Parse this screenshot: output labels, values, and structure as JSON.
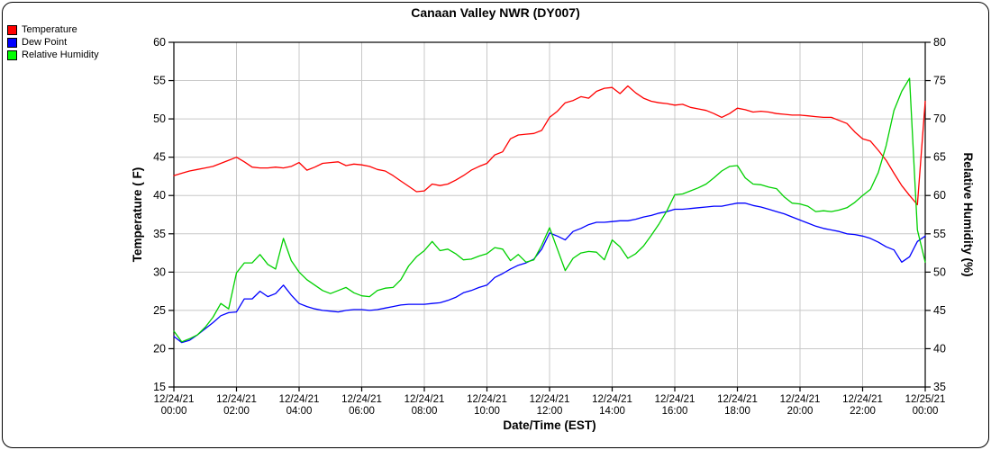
{
  "title": "Canaan Valley NWR (DY007)",
  "chart_data": {
    "type": "line",
    "title": "Canaan Valley NWR (DY007)",
    "grid": true,
    "legend_position": "top-left",
    "x_axis": {
      "label": "Date/Time (EST)",
      "unit": "hours",
      "start": 0,
      "step": 0.25,
      "range": [
        0,
        24
      ],
      "ticks": [
        {
          "date": "12/24/21",
          "time": "00:00"
        },
        {
          "date": "12/24/21",
          "time": "02:00"
        },
        {
          "date": "12/24/21",
          "time": "04:00"
        },
        {
          "date": "12/24/21",
          "time": "06:00"
        },
        {
          "date": "12/24/21",
          "time": "08:00"
        },
        {
          "date": "12/24/21",
          "time": "10:00"
        },
        {
          "date": "12/24/21",
          "time": "12:00"
        },
        {
          "date": "12/24/21",
          "time": "14:00"
        },
        {
          "date": "12/24/21",
          "time": "16:00"
        },
        {
          "date": "12/24/21",
          "time": "18:00"
        },
        {
          "date": "12/24/21",
          "time": "20:00"
        },
        {
          "date": "12/24/21",
          "time": "22:00"
        },
        {
          "date": "12/25/21",
          "time": "00:00"
        }
      ]
    },
    "y_left": {
      "label": "Temperature ( F)",
      "min": 15,
      "max": 60,
      "tick_step": 5,
      "ticks": [
        60,
        55,
        50,
        45,
        40,
        35,
        30,
        25,
        20,
        15
      ]
    },
    "y_right": {
      "label": "Relative Humidity (%)",
      "min": 35,
      "max": 80,
      "tick_step": 5,
      "ticks": [
        80,
        75,
        70,
        65,
        60,
        55,
        50,
        45,
        40,
        35
      ]
    },
    "series": [
      {
        "name": "Temperature",
        "axis": "left",
        "color": "#ff0000",
        "swatch": "#ff0000",
        "values": [
          42.6,
          42.9,
          43.2,
          43.4,
          43.6,
          43.8,
          44.2,
          44.6,
          45.0,
          44.4,
          43.7,
          43.6,
          43.6,
          43.7,
          43.6,
          43.8,
          44.3,
          43.3,
          43.7,
          44.2,
          44.3,
          44.4,
          43.9,
          44.1,
          44.0,
          43.8,
          43.4,
          43.2,
          42.6,
          41.9,
          41.2,
          40.5,
          40.6,
          41.5,
          41.3,
          41.5,
          42.0,
          42.6,
          43.3,
          43.8,
          44.2,
          45.3,
          45.7,
          47.4,
          47.9,
          48.0,
          48.1,
          48.5,
          50.2,
          51.0,
          52.1,
          52.4,
          52.9,
          52.7,
          53.6,
          54.0,
          54.1,
          53.3,
          54.3,
          53.4,
          52.7,
          52.3,
          52.1,
          52.0,
          51.8,
          51.9,
          51.5,
          51.3,
          51.1,
          50.7,
          50.2,
          50.7,
          51.4,
          51.2,
          50.9,
          51.0,
          50.9,
          50.7,
          50.6,
          50.5,
          50.5,
          50.4,
          50.3,
          50.2,
          50.2,
          49.8,
          49.4,
          48.3,
          47.4,
          47.1,
          45.9,
          44.6,
          42.9,
          41.3,
          40.0,
          38.8,
          52.3
        ]
      },
      {
        "name": "Dew Point",
        "axis": "left",
        "color": "#0000ff",
        "swatch": "#0000ff",
        "values": [
          21.6,
          20.8,
          21.1,
          21.8,
          22.6,
          23.4,
          24.3,
          24.7,
          24.8,
          26.5,
          26.5,
          27.5,
          26.8,
          27.2,
          28.3,
          27.0,
          25.9,
          25.5,
          25.2,
          25.0,
          24.9,
          24.8,
          25.0,
          25.1,
          25.1,
          25.0,
          25.1,
          25.3,
          25.5,
          25.7,
          25.8,
          25.8,
          25.8,
          25.9,
          26.0,
          26.3,
          26.7,
          27.3,
          27.6,
          28.0,
          28.3,
          29.3,
          29.8,
          30.4,
          30.9,
          31.2,
          31.7,
          33.0,
          35.1,
          34.7,
          34.2,
          35.3,
          35.7,
          36.2,
          36.5,
          36.5,
          36.6,
          36.7,
          36.7,
          36.9,
          37.2,
          37.4,
          37.7,
          37.9,
          38.2,
          38.2,
          38.3,
          38.4,
          38.5,
          38.6,
          38.6,
          38.8,
          39.0,
          39.0,
          38.7,
          38.5,
          38.2,
          37.9,
          37.6,
          37.2,
          36.8,
          36.4,
          36.0,
          35.7,
          35.5,
          35.3,
          35.0,
          34.9,
          34.7,
          34.4,
          33.9,
          33.3,
          32.9,
          31.3,
          32.0,
          34.0,
          34.7
        ]
      },
      {
        "name": "Relative Humidity",
        "axis": "right",
        "color": "#00d000",
        "swatch": "#00ff00",
        "values": [
          42.3,
          40.9,
          41.3,
          41.8,
          42.8,
          44.1,
          45.9,
          45.2,
          49.9,
          51.2,
          51.2,
          52.3,
          51.0,
          50.4,
          54.4,
          51.5,
          50.0,
          49.0,
          48.3,
          47.6,
          47.2,
          47.6,
          48.0,
          47.3,
          46.9,
          46.8,
          47.6,
          47.9,
          48.0,
          49.0,
          50.8,
          52.0,
          52.8,
          54.0,
          52.8,
          53.0,
          52.4,
          51.6,
          51.7,
          52.1,
          52.4,
          53.2,
          53.0,
          51.5,
          52.3,
          51.3,
          51.6,
          53.5,
          55.8,
          53.0,
          50.2,
          51.8,
          52.5,
          52.7,
          52.6,
          51.6,
          54.2,
          53.3,
          51.8,
          52.4,
          53.4,
          54.8,
          56.3,
          58.0,
          60.1,
          60.2,
          60.6,
          61.0,
          61.5,
          62.3,
          63.2,
          63.8,
          63.9,
          62.3,
          61.5,
          61.4,
          61.1,
          60.9,
          59.8,
          59.0,
          58.9,
          58.6,
          57.9,
          58.0,
          57.9,
          58.1,
          58.4,
          59.1,
          60.0,
          60.8,
          63.0,
          66.5,
          71.1,
          73.6,
          75.3,
          55.5,
          51.3
        ]
      }
    ],
    "colors": {
      "grid": "#c8c8c8",
      "axis": "#000000",
      "background": "#ffffff"
    }
  }
}
